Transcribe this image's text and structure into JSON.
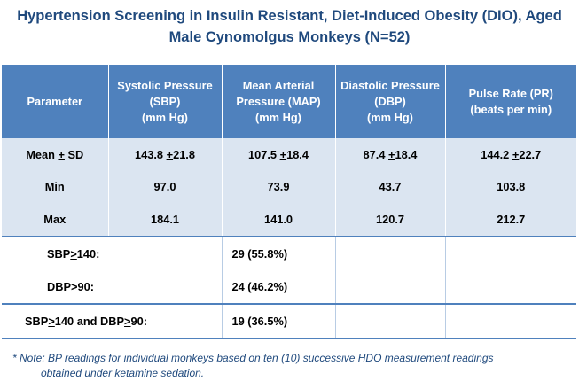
{
  "title": {
    "line1": "Hypertension Screening in Insulin Resistant, Diet-Induced Obesity (DIO), Aged",
    "line2": "Male Cynomolgus Monkeys (N=52)"
  },
  "table": {
    "headers": [
      [
        "Parameter"
      ],
      [
        "Systolic Pressure",
        "(SBP)",
        "(mm Hg)"
      ],
      [
        "Mean Arterial",
        "Pressure (MAP)",
        "(mm Hg)"
      ],
      [
        "Diastolic Pressure",
        "(DBP)",
        "(mm Hg)"
      ],
      [
        "Pulse Rate (PR)",
        "(beats per min)"
      ]
    ],
    "mean_sd": {
      "label_main": "Mean ",
      "label_pm": "+",
      "label_rest": " SD",
      "sbp": {
        "mean": "143.8",
        "sd": "21.8"
      },
      "map": {
        "mean": "107.5",
        "sd": "18.4"
      },
      "dbp": {
        "mean": "87.4",
        "sd": "18.4"
      },
      "pr": {
        "mean": "144.2",
        "sd": "22.7"
      }
    },
    "min": {
      "label": "Min",
      "sbp": "97.0",
      "map": "73.9",
      "dbp": "43.7",
      "pr": "103.8"
    },
    "max": {
      "label": "Max",
      "sbp": "184.1",
      "map": "141.0",
      "dbp": "120.7",
      "pr": "212.7"
    },
    "counts": {
      "sbp": {
        "label_pre": "SBP",
        "label_op": ">",
        "label_post": "140:",
        "value": "29 (55.8%)"
      },
      "dbp": {
        "label_pre": "DBP",
        "label_op": ">",
        "label_post": "90:",
        "value": "24 (46.2%)"
      },
      "both": {
        "label_a_pre": "SBP",
        "label_a_op": ">",
        "label_a_post": "140 and DBP",
        "label_b_op": ">",
        "label_b_post": "90:",
        "value": "19 (36.5%)"
      }
    },
    "pm_symbol": "+"
  },
  "note": {
    "line1": "* Note: BP readings for individual monkeys based on ten (10) successive HDO measurement readings",
    "line2": "obtained under ketamine sedation."
  },
  "colors": {
    "header_bg": "#4f81bd",
    "stripe_bg": "#dbe5f1",
    "title_text": "#1f497d"
  }
}
